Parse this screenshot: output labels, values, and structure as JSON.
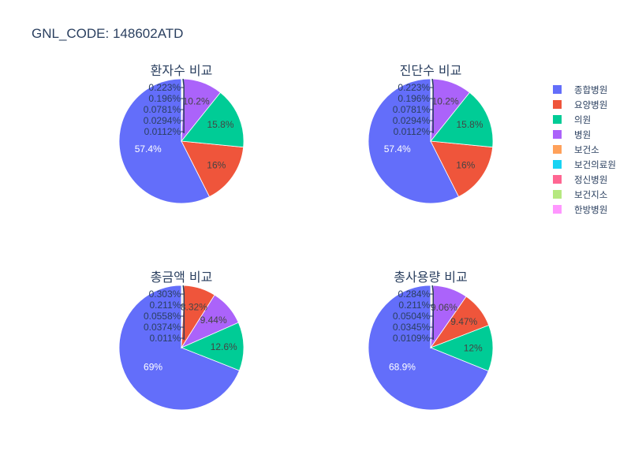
{
  "title": "GNL_CODE: 148602ATD",
  "legend": [
    {
      "label": "종합병원",
      "color": "#636efa"
    },
    {
      "label": "요양병원",
      "color": "#ef553b"
    },
    {
      "label": "의원",
      "color": "#00cc96"
    },
    {
      "label": "병원",
      "color": "#ab63fa"
    },
    {
      "label": "보건소",
      "color": "#ffa15a"
    },
    {
      "label": "보건의료원",
      "color": "#19d3f3"
    },
    {
      "label": "정신병원",
      "color": "#ff6692"
    },
    {
      "label": "보건지소",
      "color": "#b6e880"
    },
    {
      "label": "한방병원",
      "color": "#ff97ff"
    }
  ],
  "chart_data": [
    {
      "type": "pie",
      "title": "환자수 비교",
      "categories": [
        "종합병원",
        "요양병원",
        "의원",
        "병원",
        "보건소",
        "보건의료원",
        "정신병원",
        "보건지소",
        "한방병원"
      ],
      "values": [
        57.4,
        16,
        15.8,
        10.2,
        0.223,
        0.196,
        0.0781,
        0.0294,
        0.0112
      ],
      "labels": [
        "57.4%",
        "16%",
        "15.8%",
        "10.2%",
        "0.223%",
        "0.196%",
        "0.0781%",
        "0.0294%",
        "0.0112%"
      ]
    },
    {
      "type": "pie",
      "title": "진단수 비교",
      "categories": [
        "종합병원",
        "요양병원",
        "의원",
        "병원",
        "보건소",
        "보건의료원",
        "정신병원",
        "보건지소",
        "한방병원"
      ],
      "values": [
        57.4,
        16,
        15.8,
        10.2,
        0.223,
        0.196,
        0.0781,
        0.0294,
        0.0112
      ],
      "labels": [
        "57.4%",
        "16%",
        "15.8%",
        "10.2%",
        "0.223%",
        "0.196%",
        "0.0781%",
        "0.0294%",
        "0.0112%"
      ]
    },
    {
      "type": "pie",
      "title": "총금액 비교",
      "categories": [
        "종합병원",
        "의원",
        "병원",
        "요양병원",
        "보건소",
        "보건의료원",
        "정신병원",
        "보건지소",
        "한방병원"
      ],
      "values": [
        69,
        12.6,
        9.44,
        8.32,
        0.303,
        0.211,
        0.0558,
        0.0374,
        0.011
      ],
      "labels": [
        "69%",
        "12.6%",
        "9.44%",
        "8.32%",
        "0.303%",
        "0.211%",
        "0.0558%",
        "0.0374%",
        "0.011%"
      ]
    },
    {
      "type": "pie",
      "title": "총사용량 비교",
      "categories": [
        "종합병원",
        "의원",
        "요양병원",
        "병원",
        "보건소",
        "보건의료원",
        "정신병원",
        "보건지소",
        "한방병원"
      ],
      "values": [
        68.9,
        12,
        9.47,
        9.06,
        0.284,
        0.211,
        0.0504,
        0.0345,
        0.0109
      ],
      "labels": [
        "68.9%",
        "12%",
        "9.47%",
        "9.06%",
        "0.284%",
        "0.211%",
        "0.0504%",
        "0.0345%",
        "0.0109%"
      ]
    }
  ]
}
